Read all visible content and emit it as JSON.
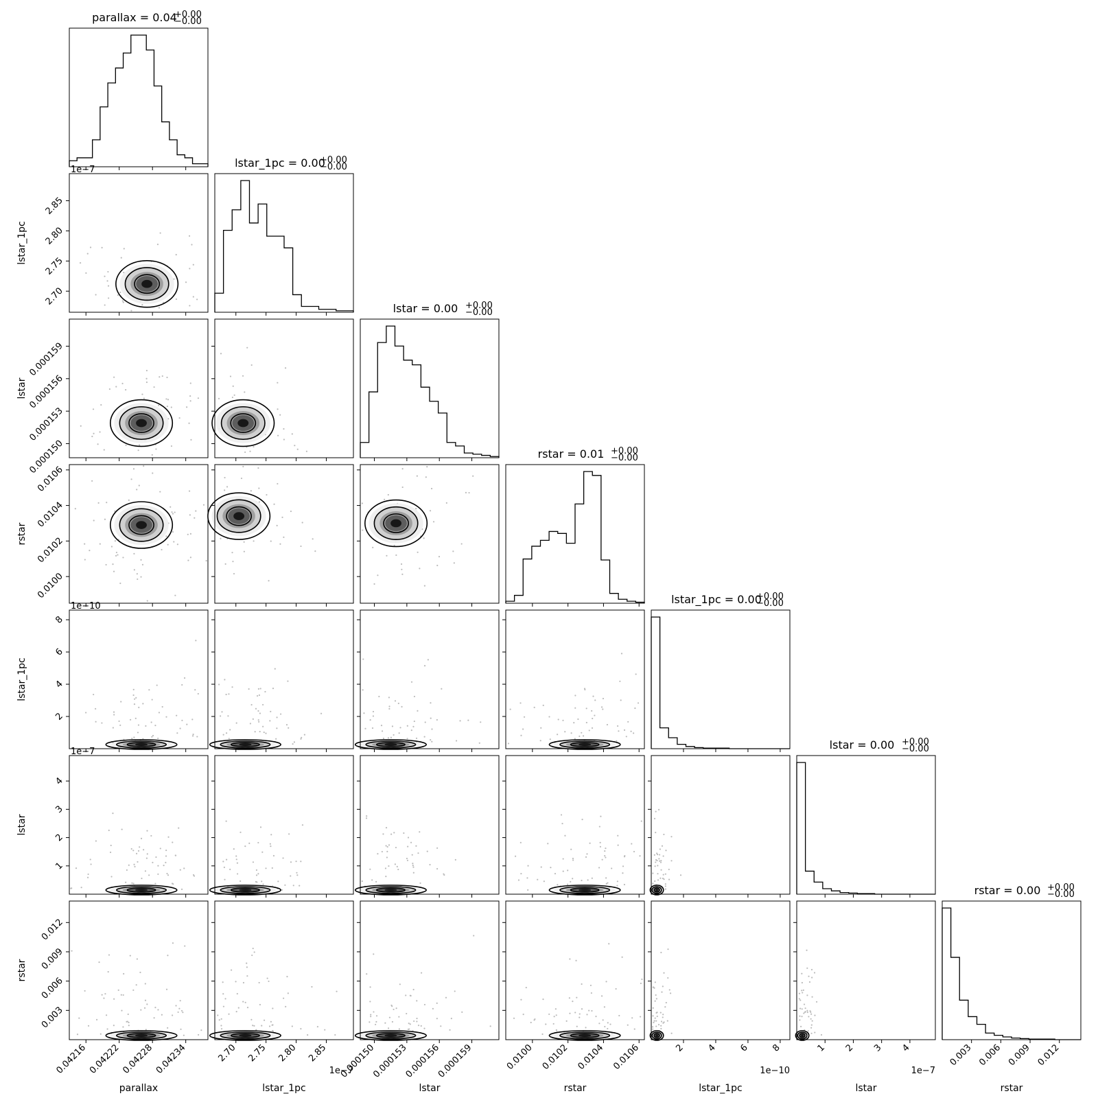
{
  "chart_data": {
    "type": "corner",
    "parameters": [
      "parallax",
      "lstar_1pc",
      "lstar",
      "rstar",
      "lstar_1pc",
      "lstar",
      "rstar"
    ],
    "titles": [
      {
        "main": "parallax = 0.04",
        "sup": "+0.00",
        "sub": "−0.00"
      },
      {
        "main": "lstar_1pc = 0.00",
        "sup": "+0.00",
        "sub": "−0.00"
      },
      {
        "main": "lstar = 0.00",
        "sup": "+0.00",
        "sub": "−0.00"
      },
      {
        "main": "rstar = 0.01",
        "sup": "+0.00",
        "sub": "−0.00"
      },
      {
        "main": "lstar_1pc = 0.00",
        "sup": "+0.00",
        "sub": "−0.00"
      },
      {
        "main": "lstar = 0.00",
        "sup": "+0.00",
        "sub": "−0.00"
      },
      {
        "main": "rstar = 0.00",
        "sup": "+0.00",
        "sub": "−0.00"
      }
    ],
    "axes": [
      {
        "label": "parallax",
        "range": [
          0.04213,
          0.04238
        ],
        "ticks": [
          0.04216,
          0.04222,
          0.04228,
          0.04234
        ],
        "tick_labels": [
          "0.04216",
          "0.04222",
          "0.04228",
          "0.04234"
        ],
        "offset": ""
      },
      {
        "label": "lstar_1pc",
        "range": [
          2.665,
          2.895
        ],
        "ticks": [
          2.7,
          2.75,
          2.8,
          2.85
        ],
        "tick_labels": [
          "2.70",
          "2.75",
          "2.80",
          "2.85"
        ],
        "offset": "1e−7"
      },
      {
        "label": "lstar",
        "range": [
          0.0001487,
          0.0001615
        ],
        "ticks": [
          0.00015,
          0.000153,
          0.000156,
          0.000159
        ],
        "tick_labels": [
          "0.000150",
          "0.000153",
          "0.000156",
          "0.000159"
        ],
        "offset": ""
      },
      {
        "label": "rstar",
        "range": [
          0.00985,
          0.01063
        ],
        "ticks": [
          0.01,
          0.0102,
          0.0104,
          0.0106
        ],
        "tick_labels": [
          "0.0100",
          "0.0102",
          "0.0104",
          "0.0106"
        ],
        "offset": ""
      },
      {
        "label": "lstar_1pc",
        "range": [
          0.0,
          8.6
        ],
        "ticks": [
          2,
          4,
          6,
          8
        ],
        "tick_labels": [
          "2",
          "4",
          "6",
          "8"
        ],
        "offset": "1e−10"
      },
      {
        "label": "lstar",
        "range": [
          0.0,
          4.9
        ],
        "ticks": [
          1,
          2,
          3,
          4
        ],
        "tick_labels": [
          "1",
          "2",
          "3",
          "4"
        ],
        "offset": "1e−7"
      },
      {
        "label": "rstar",
        "range": [
          0.0,
          0.0142
        ],
        "ticks": [
          0.003,
          0.006,
          0.009,
          0.012
        ],
        "tick_labels": [
          "0.003",
          "0.006",
          "0.009",
          "0.012"
        ],
        "offset": ""
      }
    ],
    "histograms": [
      {
        "param": "parallax",
        "counts": [
          2,
          3,
          3,
          9,
          20,
          28,
          33,
          38,
          44,
          44,
          39,
          27,
          15,
          9,
          4,
          3,
          1,
          1
        ]
      },
      {
        "param": "lstar_1pc",
        "counts": [
          13,
          56,
          70,
          90,
          61,
          74,
          52,
          52,
          44,
          12,
          4,
          4,
          2,
          2,
          1,
          1
        ]
      },
      {
        "param": "lstar",
        "counts": [
          13,
          56,
          98,
          112,
          95,
          83,
          79,
          60,
          48,
          38,
          13,
          10,
          4,
          3,
          2,
          1
        ]
      },
      {
        "param": "rstar",
        "counts": [
          2,
          8,
          45,
          58,
          64,
          73,
          71,
          61,
          101,
          134,
          130,
          44,
          10,
          4,
          2,
          1
        ]
      },
      {
        "param": "lstar_1pc",
        "counts": [
          240,
          38,
          20,
          8,
          4,
          2,
          1,
          1,
          1,
          0,
          0,
          0,
          0,
          0,
          0,
          0
        ]
      },
      {
        "param": "lstar",
        "counts": [
          240,
          42,
          22,
          10,
          6,
          3,
          2,
          1,
          1,
          0,
          0,
          0,
          0,
          0,
          0,
          0
        ]
      },
      {
        "param": "rstar",
        "counts": [
          240,
          150,
          72,
          42,
          28,
          12,
          8,
          5,
          3,
          2,
          1,
          1,
          1,
          0,
          0,
          0
        ]
      }
    ],
    "peaks": [
      {
        "x": 0.04227,
        "y": 2.712
      },
      {
        "x": 0.04226,
        "y": 0.0001519
      },
      {
        "x": 2.712,
        "y": 0.0001519
      },
      {
        "x": 0.04226,
        "y": 0.01029
      },
      {
        "x": 2.705,
        "y": 0.01034
      },
      {
        "x": 0.000152,
        "y": 0.0103
      }
    ]
  }
}
